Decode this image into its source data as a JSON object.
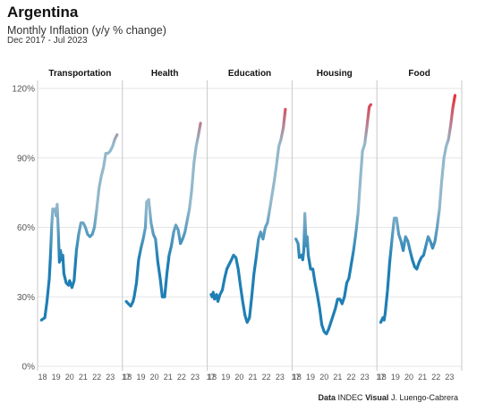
{
  "header": {
    "title": "Argentina",
    "subtitle": "Monthly Inflation (y/y % change)",
    "date_range": "Dec 2017 - Jul 2023"
  },
  "caption": {
    "data_label": "Data",
    "data_source": "INDEC",
    "visual_label": "Visual",
    "visual_author": "J. Luengo-Cabrera"
  },
  "colors": {
    "low": "#1f7fb4",
    "mid": "#93b8cc",
    "high": "#e8323c",
    "grid": "#e6e6e6",
    "divider": "#c8c8c8"
  },
  "chart_data": {
    "type": "line",
    "facets": [
      "Transportation",
      "Health",
      "Education",
      "Housing",
      "Food"
    ],
    "ylim": [
      0,
      120
    ],
    "yticks": [
      "0%",
      "30%",
      "60%",
      "90%",
      "120%"
    ],
    "ytick_values": [
      0,
      30,
      60,
      90,
      120
    ],
    "xlim": [
      2017.9,
      2023.5
    ],
    "grid": "horizontal",
    "xticks_first": [
      "18",
      "19",
      "20",
      "21",
      "22",
      "23"
    ],
    "xticks_first_values": [
      2018,
      2019,
      2020,
      2021,
      2022,
      2023
    ],
    "xticks_rest": [
      "17",
      "18",
      "19",
      "20",
      "21",
      "22",
      "23"
    ],
    "xticks_rest_values": [
      2017.9,
      2018,
      2019,
      2020,
      2021,
      2022,
      2023
    ],
    "series": [
      {
        "name": "Transportation",
        "x": [
          2017.92,
          2018.17,
          2018.33,
          2018.5,
          2018.58,
          2018.67,
          2018.75,
          2018.83,
          2018.92,
          2019.0,
          2019.08,
          2019.17,
          2019.25,
          2019.33,
          2019.42,
          2019.5,
          2019.58,
          2019.75,
          2019.92,
          2020.0,
          2020.17,
          2020.33,
          2020.5,
          2020.67,
          2020.83,
          2021.0,
          2021.17,
          2021.33,
          2021.5,
          2021.67,
          2021.83,
          2022.0,
          2022.17,
          2022.33,
          2022.5,
          2022.67,
          2022.83,
          2023.0,
          2023.17,
          2023.33,
          2023.5
        ],
        "y": [
          20,
          21,
          28,
          38,
          47,
          60,
          68,
          67,
          68,
          65,
          70,
          58,
          45,
          50,
          46,
          48,
          40,
          36,
          35,
          37,
          34,
          37,
          50,
          57,
          62,
          62,
          60,
          57,
          56,
          57,
          60,
          68,
          77,
          82,
          86,
          92,
          92,
          93,
          95,
          98,
          100
        ]
      },
      {
        "name": "Health",
        "x": [
          2017.92,
          2018.08,
          2018.25,
          2018.42,
          2018.5,
          2018.67,
          2018.83,
          2019.0,
          2019.17,
          2019.33,
          2019.42,
          2019.58,
          2019.75,
          2019.92,
          2020.08,
          2020.25,
          2020.42,
          2020.58,
          2020.75,
          2020.92,
          2021.08,
          2021.25,
          2021.42,
          2021.58,
          2021.75,
          2021.92,
          2022.08,
          2022.25,
          2022.42,
          2022.58,
          2022.75,
          2022.92,
          2023.08,
          2023.25,
          2023.4
        ],
        "y": [
          28,
          27,
          26,
          28,
          30,
          36,
          46,
          51,
          55,
          60,
          71,
          72,
          62,
          57,
          55,
          45,
          38,
          30,
          30,
          40,
          48,
          52,
          58,
          61,
          59,
          53,
          55,
          58,
          63,
          68,
          76,
          88,
          95,
          100,
          105
        ]
      },
      {
        "name": "Education",
        "x": [
          2017.92,
          2018.0,
          2018.08,
          2018.17,
          2018.33,
          2018.42,
          2018.58,
          2018.75,
          2018.92,
          2019.08,
          2019.25,
          2019.42,
          2019.58,
          2019.75,
          2019.92,
          2020.08,
          2020.25,
          2020.42,
          2020.58,
          2020.75,
          2020.92,
          2021.08,
          2021.25,
          2021.42,
          2021.58,
          2021.75,
          2021.92,
          2022.08,
          2022.25,
          2022.42,
          2022.58,
          2022.75,
          2022.92,
          2023.08,
          2023.25,
          2023.4
        ],
        "y": [
          31,
          30,
          32,
          29,
          31,
          28,
          31,
          33,
          38,
          42,
          44,
          46,
          48,
          47,
          42,
          35,
          28,
          22,
          19,
          21,
          30,
          40,
          47,
          55,
          58,
          55,
          60,
          62,
          68,
          74,
          80,
          87,
          95,
          98,
          103,
          111
        ]
      },
      {
        "name": "Housing",
        "x": [
          2017.92,
          2018.08,
          2018.17,
          2018.33,
          2018.42,
          2018.5,
          2018.58,
          2018.67,
          2018.75,
          2018.83,
          2019.0,
          2019.17,
          2019.33,
          2019.5,
          2019.67,
          2019.83,
          2020.0,
          2020.17,
          2020.33,
          2020.5,
          2020.67,
          2020.83,
          2021.0,
          2021.17,
          2021.33,
          2021.5,
          2021.67,
          2021.83,
          2022.0,
          2022.17,
          2022.33,
          2022.5,
          2022.67,
          2022.83,
          2023.0,
          2023.17,
          2023.33,
          2023.45
        ],
        "y": [
          55,
          53,
          47,
          48,
          46,
          50,
          66,
          52,
          56,
          48,
          42,
          42,
          36,
          31,
          25,
          18,
          15,
          14,
          16,
          19,
          22,
          25,
          29,
          29,
          27,
          30,
          36,
          38,
          44,
          50,
          57,
          66,
          80,
          93,
          96,
          104,
          112,
          113
        ]
      },
      {
        "name": "Food",
        "x": [
          2017.92,
          2018.08,
          2018.17,
          2018.25,
          2018.42,
          2018.58,
          2018.75,
          2018.92,
          2019.08,
          2019.25,
          2019.42,
          2019.58,
          2019.75,
          2019.92,
          2020.08,
          2020.25,
          2020.42,
          2020.58,
          2020.75,
          2020.92,
          2021.08,
          2021.25,
          2021.42,
          2021.58,
          2021.75,
          2021.92,
          2022.08,
          2022.25,
          2022.42,
          2022.58,
          2022.75,
          2022.92,
          2023.08,
          2023.25,
          2023.4
        ],
        "y": [
          19,
          21,
          20,
          23,
          33,
          45,
          55,
          64,
          64,
          57,
          54,
          50,
          56,
          54,
          50,
          46,
          43,
          42,
          45,
          47,
          48,
          52,
          56,
          54,
          51,
          54,
          60,
          68,
          80,
          90,
          95,
          98,
          104,
          112,
          117
        ]
      }
    ]
  }
}
